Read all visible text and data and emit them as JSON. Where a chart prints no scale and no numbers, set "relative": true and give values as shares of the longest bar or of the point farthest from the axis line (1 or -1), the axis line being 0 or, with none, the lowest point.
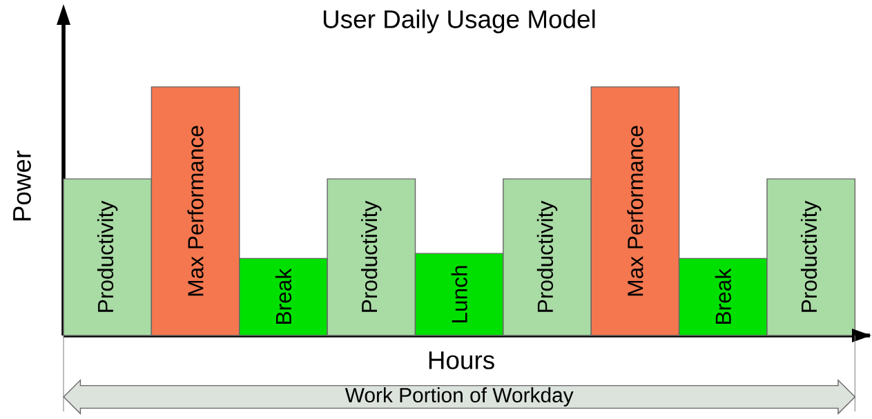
{
  "chart_data": {
    "type": "bar",
    "title": "User Daily Usage Model",
    "xlabel": "Hours",
    "ylabel": "Power",
    "relative": true,
    "categories": [
      "Productivity",
      "Max Performance",
      "Break",
      "Productivity",
      "Lunch",
      "Productivity",
      "Max Performance",
      "Break",
      "Productivity"
    ],
    "values": [
      0.63,
      1,
      0.31,
      0.63,
      0.33,
      0.63,
      1,
      0.31,
      0.63
    ],
    "colors": [
      "#a9dba5",
      "#f4774f",
      "#00e000",
      "#a9dba5",
      "#00e000",
      "#a9dba5",
      "#f4774f",
      "#00e000",
      "#a9dba5"
    ],
    "annotations": [
      "Work Portion of Workday"
    ]
  }
}
